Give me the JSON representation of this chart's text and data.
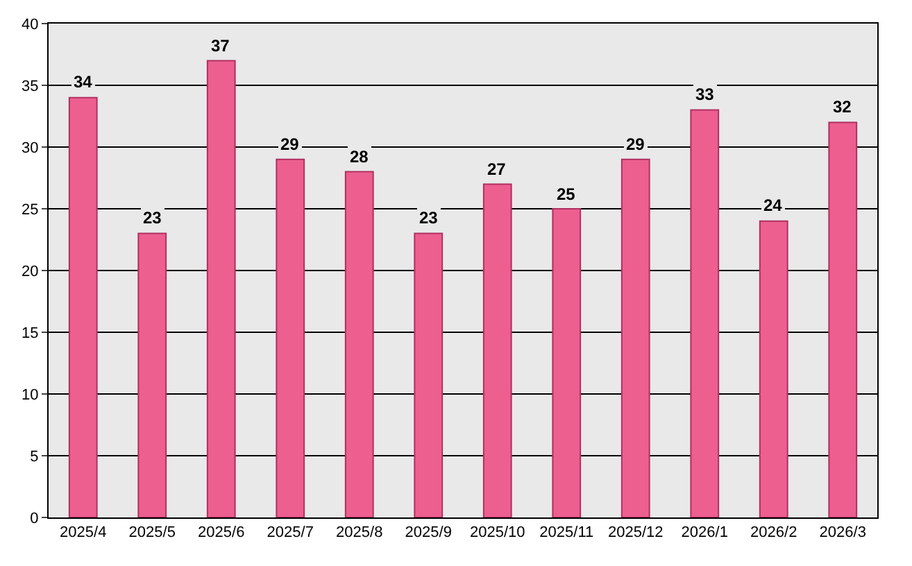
{
  "chart_data": {
    "type": "bar",
    "categories": [
      "2025/4",
      "2025/5",
      "2025/6",
      "2025/7",
      "2025/8",
      "2025/9",
      "2025/10",
      "2025/11",
      "2025/12",
      "2026/1",
      "2026/2",
      "2026/3"
    ],
    "values": [
      34,
      23,
      37,
      29,
      28,
      23,
      27,
      25,
      29,
      33,
      24,
      32
    ],
    "color": "#ec5f8e",
    "ylim": [
      0,
      40
    ],
    "yticks": [
      0,
      5,
      10,
      15,
      20,
      25,
      30,
      35,
      40
    ],
    "grid": "y",
    "data_labels": true,
    "legend": false
  }
}
